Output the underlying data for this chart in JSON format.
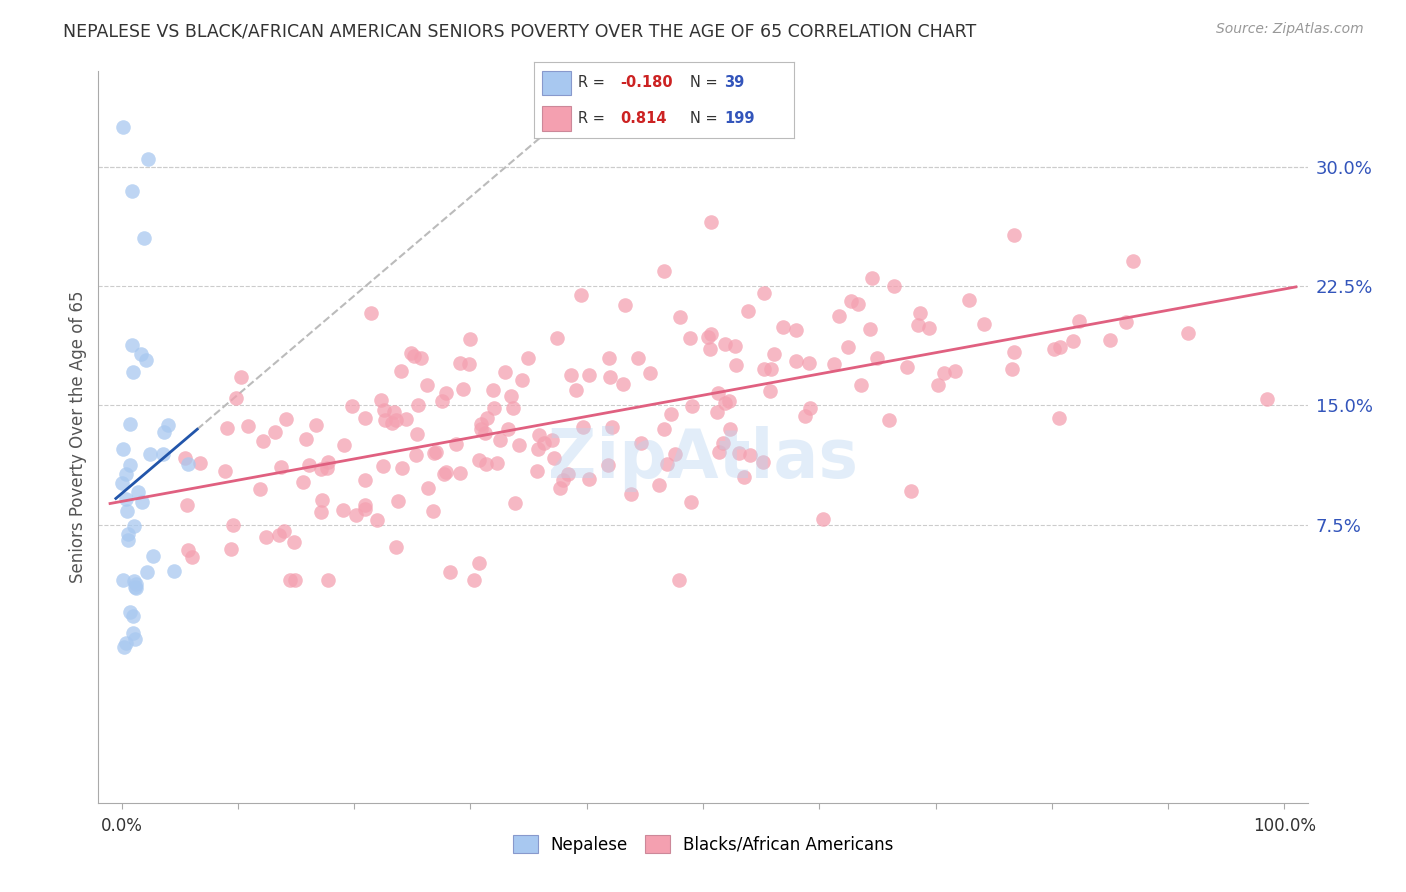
{
  "title": "NEPALESE VS BLACK/AFRICAN AMERICAN SENIORS POVERTY OVER THE AGE OF 65 CORRELATION CHART",
  "source": "Source: ZipAtlas.com",
  "ylabel": "Seniors Poverty Over the Age of 65",
  "xlim": [
    -0.02,
    1.02
  ],
  "ylim": [
    -0.1,
    0.36
  ],
  "yticks": [
    0.075,
    0.15,
    0.225,
    0.3
  ],
  "ytick_labels": [
    "7.5%",
    "15.0%",
    "22.5%",
    "30.0%"
  ],
  "nepalese_color": "#a8c8f0",
  "black_color": "#f4a0b0",
  "nepalese_R": -0.18,
  "nepalese_N": 39,
  "black_R": 0.814,
  "black_N": 199,
  "background_color": "#ffffff",
  "grid_color": "#cccccc",
  "title_color": "#333333",
  "axis_label_color": "#555555",
  "right_tick_color": "#3355bb",
  "watermark_color": "#b8d4f0",
  "watermark_alpha": 0.4,
  "trend_blue": "#2255aa",
  "trend_pink": "#e06080",
  "trend_gray": "#bbbbbb"
}
